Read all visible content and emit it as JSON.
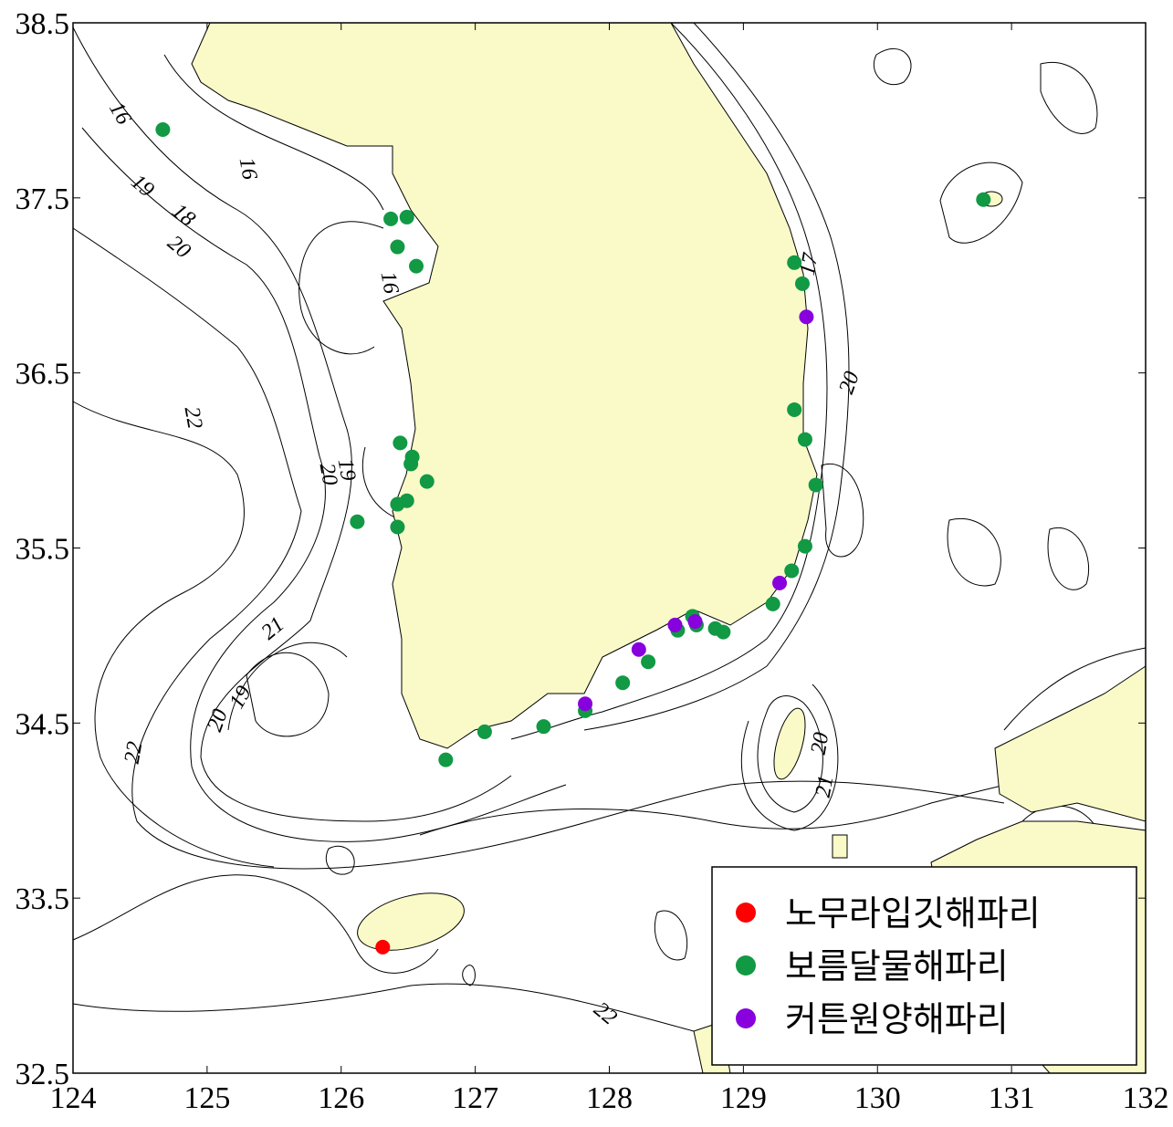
{
  "chart_data": {
    "type": "scatter",
    "xlim": [
      124,
      132
    ],
    "ylim": [
      32.5,
      38.5
    ],
    "xticks": [
      124,
      125,
      126,
      127,
      128,
      129,
      130,
      131,
      132
    ],
    "yticks": [
      32.5,
      33.5,
      34.5,
      35.5,
      36.5,
      37.5,
      38.5
    ],
    "legend": "lower right",
    "contour_labels": [
      16,
      16,
      19,
      18,
      20,
      16,
      17,
      20,
      22,
      19,
      20,
      21,
      19,
      20,
      22,
      20,
      21,
      22
    ],
    "series": [
      {
        "name": "노무라입깃해파리",
        "color": "#ff0000",
        "x": [
          126.31
        ],
        "values": [
          33.22
        ]
      },
      {
        "name": "보름달물해파리",
        "color": "#119944",
        "x": [
          124.67,
          126.37,
          126.49,
          126.42,
          126.56,
          129.38,
          129.44,
          130.79,
          129.38,
          129.46,
          129.54,
          129.46,
          129.36,
          129.22,
          126.44,
          126.53,
          126.52,
          126.64,
          126.42,
          126.49,
          126.12,
          126.42,
          128.62,
          128.51,
          128.79,
          128.85,
          128.29,
          128.1,
          127.82,
          127.51,
          127.07,
          126.78,
          128.65
        ],
        "values": [
          37.89,
          37.38,
          37.39,
          37.22,
          37.11,
          37.13,
          37.01,
          37.49,
          36.29,
          36.12,
          35.86,
          35.51,
          35.37,
          35.18,
          36.1,
          36.02,
          35.98,
          35.88,
          35.75,
          35.77,
          35.65,
          35.62,
          35.11,
          35.03,
          35.04,
          35.02,
          34.85,
          34.73,
          34.57,
          34.48,
          34.45,
          34.29,
          35.06
        ]
      },
      {
        "name": "커튼원양해파리",
        "color": "#8800dd",
        "x": [
          129.47,
          129.27,
          128.49,
          128.64,
          128.22,
          127.82
        ],
        "values": [
          36.82,
          35.3,
          35.06,
          35.08,
          34.92,
          34.61
        ]
      }
    ]
  }
}
